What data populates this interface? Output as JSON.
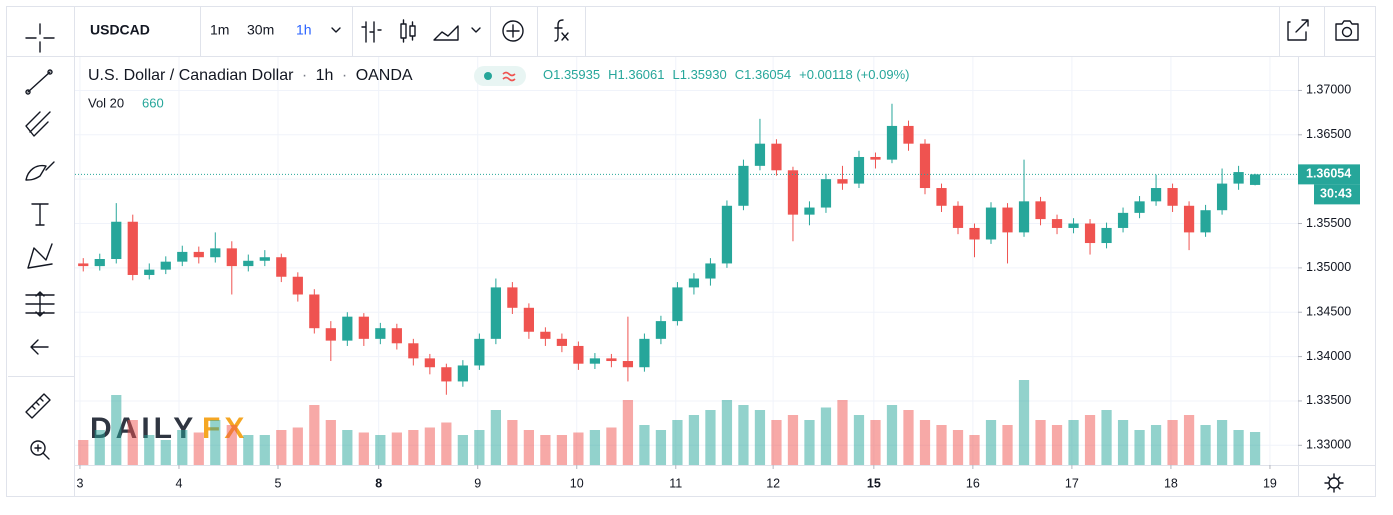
{
  "toolbar": {
    "symbol": "USDCAD",
    "intervals": [
      "1m",
      "30m",
      "1h"
    ],
    "active_interval": 2
  },
  "header": {
    "name": "U.S. Dollar / Canadian Dollar",
    "interval": "1h",
    "source": "OANDA",
    "ohlc": [
      "O1.35935",
      "H1.36061",
      "L1.35930",
      "C1.36054",
      "+0.00118 (+0.09%)"
    ],
    "volume_label": "Vol 20",
    "volume_value": "660"
  },
  "watermark": {
    "left": "DAILY",
    "right": "FX"
  },
  "chart_data": {
    "type": "candlestick",
    "up_color": "#26a69a",
    "down_color": "#ef5350",
    "open": [
      1.3505,
      1.3502,
      1.351,
      1.3552,
      1.3492,
      1.3498,
      1.3507,
      1.3518,
      1.3512,
      1.3522,
      1.3502,
      1.3508,
      1.3512,
      1.349,
      1.347,
      1.3432,
      1.3418,
      1.3445,
      1.342,
      1.3432,
      1.3415,
      1.3398,
      1.3388,
      1.3372,
      1.339,
      1.342,
      1.3478,
      1.3455,
      1.3428,
      1.342,
      1.3412,
      1.3392,
      1.3398,
      1.3395,
      1.3388,
      1.342,
      1.344,
      1.3478,
      1.3488,
      1.3505,
      1.357,
      1.3615,
      1.364,
      1.361,
      1.356,
      1.3568,
      1.36,
      1.3595,
      1.3625,
      1.3622,
      1.366,
      1.364,
      1.359,
      1.357,
      1.3545,
      1.3532,
      1.3568,
      1.354,
      1.3575,
      1.3555,
      1.3545,
      1.355,
      1.3528,
      1.3545,
      1.3562,
      1.3575,
      1.359,
      1.357,
      1.354,
      1.3565,
      1.3595,
      1.35935
    ],
    "high": [
      1.3511,
      1.3516,
      1.3573,
      1.356,
      1.3505,
      1.3513,
      1.3525,
      1.3524,
      1.354,
      1.353,
      1.3515,
      1.352,
      1.3516,
      1.3495,
      1.3476,
      1.344,
      1.345,
      1.3449,
      1.3438,
      1.3437,
      1.342,
      1.3403,
      1.3392,
      1.3396,
      1.3426,
      1.3488,
      1.3484,
      1.346,
      1.3433,
      1.3426,
      1.3417,
      1.3404,
      1.3403,
      1.3445,
      1.3426,
      1.3446,
      1.3484,
      1.3494,
      1.3511,
      1.3576,
      1.3622,
      1.3668,
      1.3645,
      1.3614,
      1.3575,
      1.3606,
      1.3615,
      1.3632,
      1.363,
      1.3685,
      1.3666,
      1.3645,
      1.3595,
      1.3575,
      1.355,
      1.3574,
      1.3573,
      1.3622,
      1.358,
      1.356,
      1.3556,
      1.3555,
      1.3551,
      1.3568,
      1.3581,
      1.3605,
      1.3595,
      1.3575,
      1.3571,
      1.3612,
      1.3615,
      1.36061
    ],
    "low": [
      1.3496,
      1.3497,
      1.3505,
      1.3486,
      1.3487,
      1.3493,
      1.3502,
      1.3505,
      1.3506,
      1.347,
      1.3496,
      1.3502,
      1.3484,
      1.3462,
      1.3426,
      1.3395,
      1.3412,
      1.3412,
      1.3414,
      1.3408,
      1.339,
      1.338,
      1.3357,
      1.3366,
      1.3385,
      1.3414,
      1.3448,
      1.342,
      1.3412,
      1.3405,
      1.3385,
      1.3386,
      1.3388,
      1.3372,
      1.3383,
      1.3414,
      1.3435,
      1.347,
      1.348,
      1.35,
      1.3565,
      1.361,
      1.3604,
      1.353,
      1.3548,
      1.3562,
      1.3588,
      1.359,
      1.3612,
      1.3618,
      1.3632,
      1.3583,
      1.3563,
      1.3538,
      1.3512,
      1.3527,
      1.3505,
      1.3535,
      1.3548,
      1.3538,
      1.3539,
      1.3515,
      1.3522,
      1.354,
      1.3556,
      1.357,
      1.3563,
      1.352,
      1.3535,
      1.356,
      1.3588,
      1.3593
    ],
    "close": [
      1.3502,
      1.351,
      1.3552,
      1.3492,
      1.3498,
      1.3507,
      1.3518,
      1.3512,
      1.3522,
      1.3502,
      1.3508,
      1.3512,
      1.349,
      1.347,
      1.3432,
      1.3418,
      1.3445,
      1.342,
      1.3432,
      1.3415,
      1.3398,
      1.3388,
      1.3372,
      1.339,
      1.342,
      1.3478,
      1.3455,
      1.3428,
      1.342,
      1.3412,
      1.3392,
      1.3398,
      1.3395,
      1.3388,
      1.342,
      1.344,
      1.3478,
      1.3488,
      1.3505,
      1.357,
      1.3615,
      1.364,
      1.361,
      1.356,
      1.3568,
      1.36,
      1.3595,
      1.3625,
      1.3622,
      1.366,
      1.364,
      1.359,
      1.357,
      1.3545,
      1.3532,
      1.3568,
      1.354,
      1.3575,
      1.3555,
      1.3545,
      1.355,
      1.3528,
      1.3545,
      1.3562,
      1.3575,
      1.359,
      1.357,
      1.354,
      1.3565,
      1.3595,
      1.3608,
      1.36054
    ],
    "volume": [
      500,
      700,
      1400,
      900,
      600,
      500,
      700,
      650,
      900,
      800,
      600,
      600,
      700,
      750,
      1200,
      900,
      700,
      650,
      600,
      650,
      700,
      750,
      850,
      600,
      700,
      1100,
      900,
      700,
      600,
      600,
      650,
      700,
      750,
      1300,
      800,
      700,
      900,
      1000,
      1100,
      1300,
      1200,
      1100,
      900,
      1000,
      900,
      1150,
      1300,
      1000,
      900,
      1200,
      1100,
      900,
      800,
      700,
      600,
      900,
      800,
      1700,
      900,
      800,
      900,
      1000,
      1100,
      900,
      700,
      800,
      900,
      1000,
      800,
      900,
      700,
      660
    ],
    "volume_lim": [
      0,
      2000
    ],
    "ylim": [
      1.32778,
      1.37377
    ],
    "yticks": [
      {
        "value": 1.33,
        "label": "1.33000"
      },
      {
        "value": 1.335,
        "label": "1.33500"
      },
      {
        "value": 1.34,
        "label": "1.34000"
      },
      {
        "value": 1.345,
        "label": "1.34500"
      },
      {
        "value": 1.35,
        "label": "1.35000"
      },
      {
        "value": 1.355,
        "label": "1.35500"
      },
      {
        "value": 1.36,
        "label": "1.36000"
      },
      {
        "value": 1.365,
        "label": "1.36500"
      },
      {
        "value": 1.37,
        "label": "1.37000"
      }
    ],
    "xlim": [
      -0.5,
      73.6
    ],
    "xticks": [
      {
        "value": -0.2,
        "label": "3"
      },
      {
        "value": 5.8,
        "label": "4"
      },
      {
        "value": 11.8,
        "label": "5"
      },
      {
        "value": 17.9,
        "label": "8",
        "bold": true
      },
      {
        "value": 23.9,
        "label": "9"
      },
      {
        "value": 29.9,
        "label": "10"
      },
      {
        "value": 35.9,
        "label": "11"
      },
      {
        "value": 41.8,
        "label": "12"
      },
      {
        "value": 47.9,
        "label": "15",
        "bold": true
      },
      {
        "value": 53.9,
        "label": "16"
      },
      {
        "value": 59.9,
        "label": "17"
      },
      {
        "value": 65.9,
        "label": "18"
      },
      {
        "value": 71.9,
        "label": "19"
      }
    ],
    "grid": true,
    "last_price": {
      "value": 1.36054,
      "label": "1.36054"
    },
    "countdown": "30:43"
  }
}
